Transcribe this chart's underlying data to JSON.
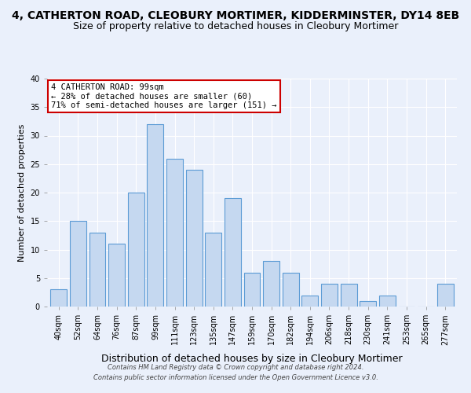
{
  "title1": "4, CATHERTON ROAD, CLEOBURY MORTIMER, KIDDERMINSTER, DY14 8EB",
  "title2": "Size of property relative to detached houses in Cleobury Mortimer",
  "xlabel": "Distribution of detached houses by size in Cleobury Mortimer",
  "ylabel": "Number of detached properties",
  "categories": [
    "40sqm",
    "52sqm",
    "64sqm",
    "76sqm",
    "87sqm",
    "99sqm",
    "111sqm",
    "123sqm",
    "135sqm",
    "147sqm",
    "159sqm",
    "170sqm",
    "182sqm",
    "194sqm",
    "206sqm",
    "218sqm",
    "230sqm",
    "241sqm",
    "253sqm",
    "265sqm",
    "277sqm"
  ],
  "values": [
    3,
    15,
    13,
    11,
    20,
    32,
    26,
    24,
    13,
    19,
    6,
    8,
    6,
    2,
    4,
    4,
    1,
    2,
    0,
    0,
    4
  ],
  "bar_color": "#c5d8f0",
  "bar_edge_color": "#5b9bd5",
  "ylim": [
    0,
    40
  ],
  "yticks": [
    0,
    5,
    10,
    15,
    20,
    25,
    30,
    35,
    40
  ],
  "annotation_line1": "4 CATHERTON ROAD: 99sqm",
  "annotation_line2": "← 28% of detached houses are smaller (60)",
  "annotation_line3": "71% of semi-detached houses are larger (151) →",
  "footnote1": "Contains HM Land Registry data © Crown copyright and database right 2024.",
  "footnote2": "Contains public sector information licensed under the Open Government Licence v3.0.",
  "bg_color": "#eaf0fb",
  "plot_bg_color": "#eaf0fb",
  "annotation_box_edge_color": "#cc0000",
  "title_fontsize": 10,
  "subtitle_fontsize": 9,
  "xlabel_fontsize": 9,
  "ylabel_fontsize": 8,
  "tick_fontsize": 7,
  "footnote_fontsize": 6
}
